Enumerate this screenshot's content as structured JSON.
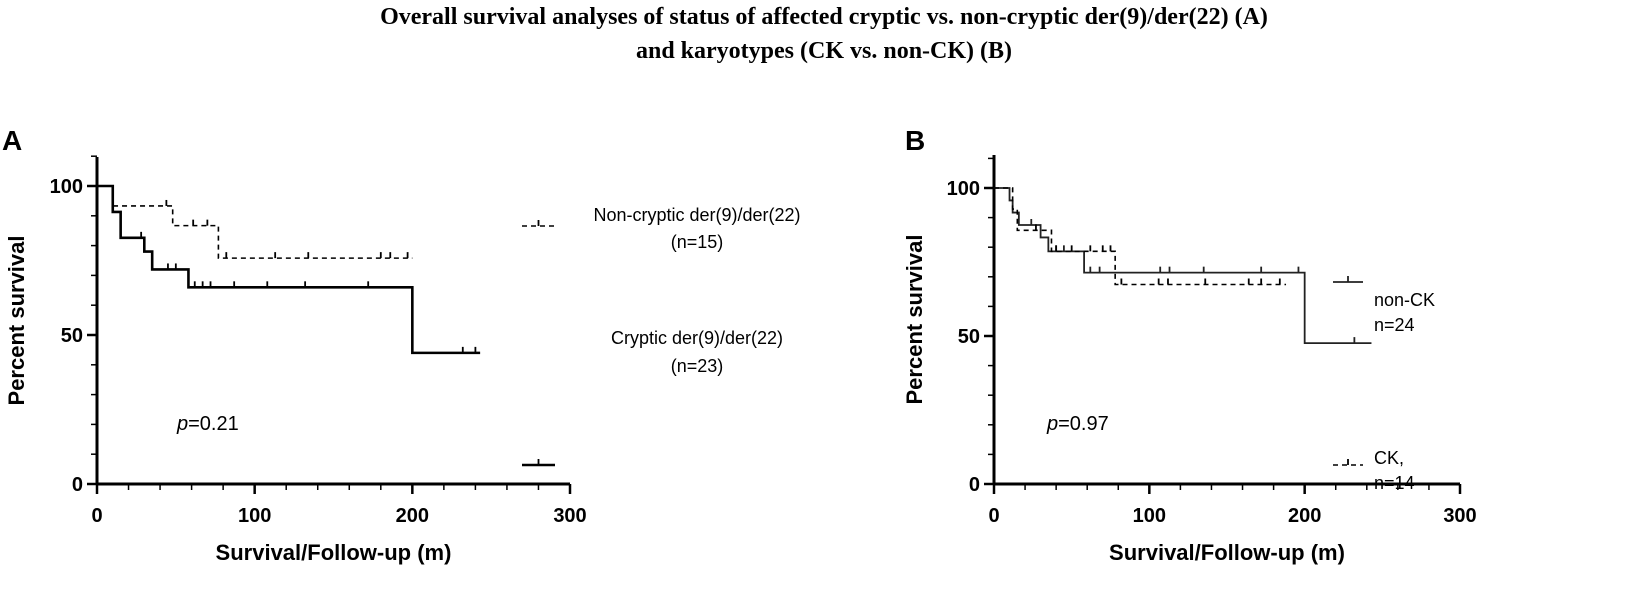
{
  "figure": {
    "title_line1": "Overall survival analyses of status of affected cryptic vs. non-cryptic der(9)/der(22) (A)",
    "title_line2": "and karyotypes (CK vs. non-CK) (B)"
  },
  "chart_data": [
    {
      "type": "line",
      "subtype": "kaplan-meier",
      "panel": "A",
      "xlabel": "Survival/Follow-up (m)",
      "ylabel": "Percent survival",
      "xlim": [
        0,
        300
      ],
      "ylim": [
        0,
        110
      ],
      "xticks": [
        0,
        100,
        200,
        300
      ],
      "yticks": [
        0,
        50,
        100
      ],
      "grid": false,
      "legend_position": "right",
      "annotation": {
        "prefix": "p",
        "value": "=0.21"
      },
      "series": [
        {
          "name": "Non-cryptic der(9)/der(22)",
          "name_line2": "(n=15)",
          "style": "dashed",
          "steps": [
            [
              0,
              100
            ],
            [
              10,
              93.3
            ],
            [
              48,
              86.7
            ],
            [
              77,
              75.8
            ],
            [
              200,
              75.8
            ]
          ],
          "censors": [
            [
              44,
              93.3
            ],
            [
              61,
              86.7
            ],
            [
              70,
              86.7
            ],
            [
              82,
              75.8
            ],
            [
              113,
              75.8
            ],
            [
              134,
              75.8
            ],
            [
              180,
              75.8
            ],
            [
              186,
              75.8
            ],
            [
              197,
              75.8
            ]
          ]
        },
        {
          "name": "Cryptic der(9)/der(22)",
          "name_line2": "(n=23)",
          "style": "solid",
          "steps": [
            [
              0,
              100
            ],
            [
              10,
              91.3
            ],
            [
              15,
              82.6
            ],
            [
              30,
              78
            ],
            [
              35,
              72
            ],
            [
              58,
              66
            ],
            [
              200,
              44
            ],
            [
              243,
              44
            ]
          ],
          "censors": [
            [
              28,
              82.6
            ],
            [
              45,
              72
            ],
            [
              50,
              72
            ],
            [
              62,
              66
            ],
            [
              67,
              66
            ],
            [
              72,
              66
            ],
            [
              87,
              66
            ],
            [
              108,
              66
            ],
            [
              132,
              66
            ],
            [
              172,
              66
            ],
            [
              232,
              44
            ],
            [
              240,
              44
            ]
          ]
        }
      ]
    },
    {
      "type": "line",
      "subtype": "kaplan-meier",
      "panel": "B",
      "xlabel": "Survival/Follow-up (m)",
      "ylabel": "Percent survival",
      "xlim": [
        0,
        300
      ],
      "ylim": [
        0,
        110
      ],
      "xticks": [
        0,
        100,
        200,
        300
      ],
      "yticks": [
        0,
        50,
        100
      ],
      "grid": false,
      "legend_position": "right",
      "annotation": {
        "prefix": "p",
        "value": "=0.97"
      },
      "series": [
        {
          "name": "non-CK",
          "name_line2": "n=24",
          "style": "solid",
          "steps": [
            [
              0,
              100
            ],
            [
              10,
              95.8
            ],
            [
              12,
              91.7
            ],
            [
              16,
              87.5
            ],
            [
              30,
              83.3
            ],
            [
              35,
              78.6
            ],
            [
              58,
              71.4
            ],
            [
              200,
              47.6
            ],
            [
              243,
              47.6
            ]
          ],
          "censors": [
            [
              24,
              87.5
            ],
            [
              40,
              78.6
            ],
            [
              45,
              78.6
            ],
            [
              62,
              71.4
            ],
            [
              68,
              71.4
            ],
            [
              107,
              71.4
            ],
            [
              113,
              71.4
            ],
            [
              135,
              71.4
            ],
            [
              172,
              71.4
            ],
            [
              196,
              71.4
            ],
            [
              232,
              47.6
            ]
          ]
        },
        {
          "name": "CK,",
          "name_line2": "n=14",
          "style": "dashed",
          "steps": [
            [
              0,
              100
            ],
            [
              12,
              92.9
            ],
            [
              15,
              85.7
            ],
            [
              37,
              78.6
            ],
            [
              55,
              78.6
            ],
            [
              78,
              67.4
            ],
            [
              188,
              67.4
            ]
          ],
          "censors": [
            [
              27,
              85.7
            ],
            [
              40,
              78.6
            ],
            [
              50,
              78.6
            ],
            [
              62,
              78.6
            ],
            [
              70,
              78.6
            ],
            [
              75,
              78.6
            ],
            [
              82,
              67.4
            ],
            [
              106,
              67.4
            ],
            [
              112,
              67.4
            ],
            [
              136,
              67.4
            ],
            [
              164,
              67.4
            ],
            [
              172,
              67.4
            ],
            [
              184,
              67.4
            ]
          ]
        }
      ]
    }
  ]
}
